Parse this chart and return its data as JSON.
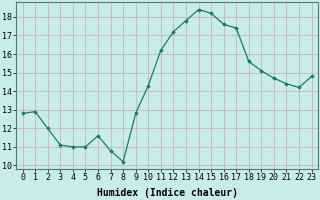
{
  "x": [
    0,
    1,
    2,
    3,
    4,
    5,
    6,
    7,
    8,
    9,
    10,
    11,
    12,
    13,
    14,
    15,
    16,
    17,
    18,
    19,
    20,
    21,
    22,
    23
  ],
  "y": [
    12.8,
    12.9,
    12.0,
    11.1,
    11.0,
    11.0,
    11.6,
    10.8,
    10.2,
    12.8,
    14.3,
    16.2,
    17.2,
    17.8,
    18.4,
    18.2,
    17.6,
    17.4,
    15.6,
    15.1,
    14.7,
    14.4,
    14.2,
    14.8
  ],
  "xlabel": "Humidex (Indice chaleur)",
  "ylim": [
    9.8,
    18.8
  ],
  "xlim": [
    -0.5,
    23.5
  ],
  "yticks": [
    10,
    11,
    12,
    13,
    14,
    15,
    16,
    17,
    18
  ],
  "xticks": [
    0,
    1,
    2,
    3,
    4,
    5,
    6,
    7,
    8,
    9,
    10,
    11,
    12,
    13,
    14,
    15,
    16,
    17,
    18,
    19,
    20,
    21,
    22,
    23
  ],
  "xtick_labels": [
    "0",
    "1",
    "2",
    "3",
    "4",
    "5",
    "6",
    "7",
    "8",
    "9",
    "10",
    "11",
    "12",
    "13",
    "14",
    "15",
    "16",
    "17",
    "18",
    "19",
    "20",
    "21",
    "22",
    "23"
  ],
  "line_color": "#1a7a6a",
  "marker": "D",
  "marker_size": 1.8,
  "linewidth": 0.9,
  "bg_color": "#c8ecec",
  "grid_color": "#c8a8a8",
  "xlabel_fontsize": 7,
  "tick_fontsize": 6,
  "ylabel_ticks": [
    "10",
    "11",
    "12",
    "13",
    "14",
    "15",
    "16",
    "17",
    "18"
  ]
}
